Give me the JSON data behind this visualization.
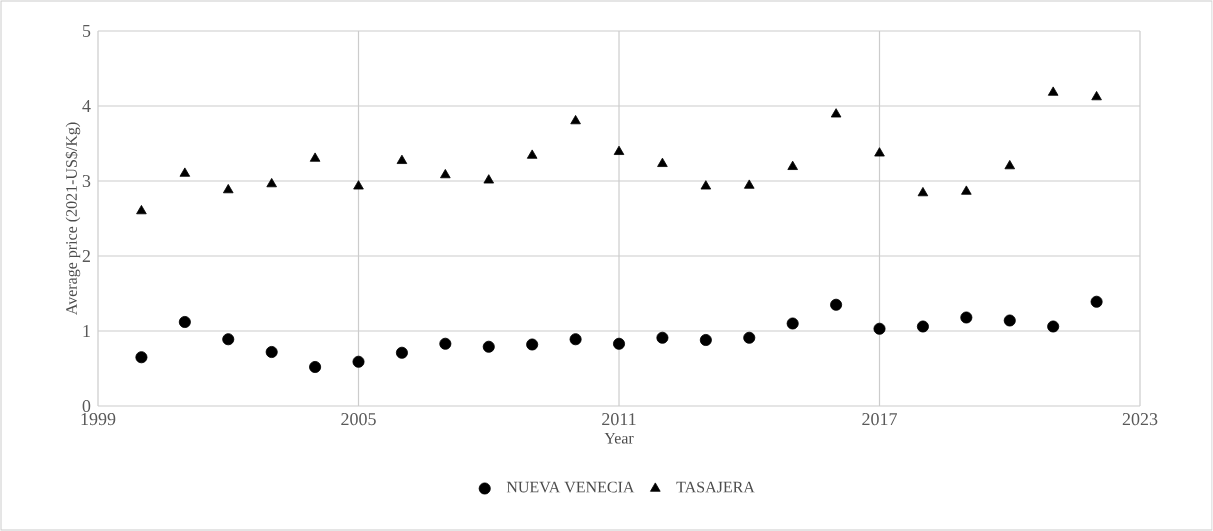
{
  "chart_data": {
    "type": "scatter",
    "xlabel": "Year",
    "ylabel": "Average price (2021-US$/Kg)",
    "x": [
      2000,
      2001,
      2002,
      2003,
      2004,
      2005,
      2006,
      2007,
      2008,
      2009,
      2010,
      2011,
      2012,
      2013,
      2014,
      2015,
      2016,
      2017,
      2018,
      2019,
      2020,
      2021,
      2022
    ],
    "series": [
      {
        "name": "NUEVA VENECIA",
        "color": "#000000",
        "marker": "circle",
        "values": [
          0.65,
          1.12,
          0.89,
          0.72,
          0.52,
          0.59,
          0.71,
          0.83,
          0.79,
          0.82,
          0.89,
          0.83,
          0.91,
          0.88,
          0.91,
          1.1,
          1.35,
          1.03,
          1.06,
          1.18,
          1.14,
          1.06,
          1.39
        ]
      },
      {
        "name": "TASAJERA",
        "color": "#000000",
        "marker": "triangle",
        "values": [
          2.6,
          3.1,
          2.88,
          2.96,
          3.3,
          2.93,
          3.27,
          3.08,
          3.01,
          3.34,
          3.8,
          3.39,
          3.23,
          2.93,
          2.94,
          3.19,
          3.89,
          3.37,
          2.84,
          2.86,
          3.2,
          4.18,
          4.12
        ]
      }
    ],
    "xlim": [
      1999,
      2023
    ],
    "xticks": [
      1999,
      2005,
      2011,
      2017,
      2023
    ],
    "ylim": [
      0,
      5
    ],
    "yticks": [
      0,
      1,
      2,
      3,
      4,
      5
    ],
    "grid": true,
    "legend": "bottom"
  }
}
